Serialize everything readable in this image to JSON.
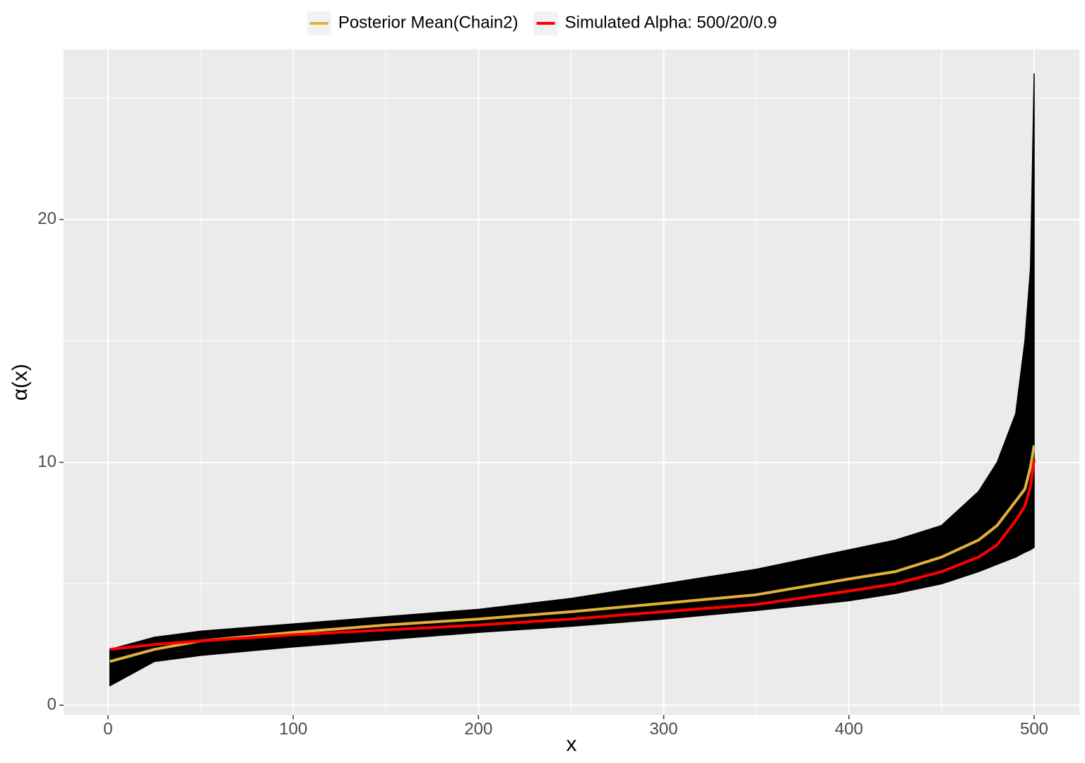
{
  "chart_data": {
    "type": "line",
    "x_label": "x",
    "y_label": "α(x)",
    "x": [
      1,
      25,
      50,
      100,
      150,
      200,
      250,
      300,
      350,
      400,
      425,
      450,
      470,
      480,
      490,
      495,
      498,
      500
    ],
    "series": [
      {
        "name": "Posterior Mean(Chain2)",
        "color": "#e0b13a",
        "values": [
          1.8,
          2.3,
          2.65,
          3.0,
          3.3,
          3.55,
          3.85,
          4.2,
          4.55,
          5.2,
          5.5,
          6.1,
          6.8,
          7.4,
          8.4,
          8.9,
          9.8,
          10.7
        ]
      },
      {
        "name": "Simulated Alpha: 500/20/0.9",
        "color": "#ff0000",
        "values": [
          2.3,
          2.5,
          2.65,
          2.9,
          3.1,
          3.3,
          3.55,
          3.85,
          4.15,
          4.7,
          5.0,
          5.5,
          6.1,
          6.6,
          7.6,
          8.2,
          9.0,
          10.1
        ]
      }
    ],
    "band": {
      "color": "#000000",
      "upper": [
        2.3,
        2.8,
        3.05,
        3.35,
        3.65,
        3.95,
        4.4,
        5.0,
        5.6,
        6.4,
        6.8,
        7.4,
        8.8,
        10,
        12,
        15,
        18,
        26
      ],
      "lower": [
        0.8,
        1.8,
        2.05,
        2.4,
        2.7,
        3.0,
        3.25,
        3.55,
        3.9,
        4.3,
        4.6,
        5.0,
        5.5,
        5.8,
        6.1,
        6.3,
        6.4,
        6.5
      ]
    },
    "xlim": [
      -24,
      524.4
    ],
    "ylim": [
      -0.4,
      27
    ],
    "xticks": [
      0,
      100,
      200,
      300,
      400,
      500
    ],
    "yticks": [
      0,
      10,
      20
    ],
    "xminor": [
      50,
      150,
      250,
      350,
      450
    ],
    "yminor": [
      5,
      15,
      25
    ],
    "grid": true,
    "legend": "top"
  }
}
